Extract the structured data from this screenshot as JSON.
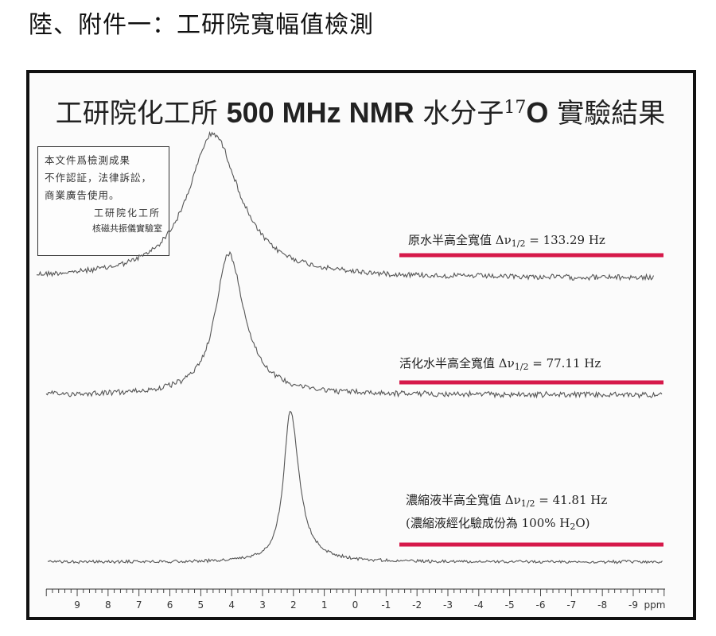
{
  "page": {
    "heading": "陸、附件一：工研院寬幅值檢測"
  },
  "figure": {
    "title_prefix": "工研院化工所",
    "title_bold": "500 MHz NMR",
    "title_mid": "水分子",
    "title_isotope_mass": "17",
    "title_isotope_symbol": "O",
    "title_suffix": "實驗結果"
  },
  "stamp": {
    "lines": [
      "本文件爲檢測成果",
      "不作認証，法律訴訟，",
      "商業廣告使用。"
    ],
    "org": "工研院化工所",
    "lab": "核磁共振儀實驗室"
  },
  "colors": {
    "marker_line": "#d6194a",
    "trace": "#555555",
    "frame": "#111111"
  },
  "chart_data": {
    "type": "line",
    "title": "工研院化工所 500 MHz NMR 水分子17O 實驗結果",
    "xlabel": "ppm",
    "xlim": [
      10,
      -10
    ],
    "x_reversed": true,
    "x_ticks": [
      9,
      8,
      7,
      6,
      5,
      4,
      3,
      2,
      1,
      0,
      -1,
      -2,
      -3,
      -4,
      -5,
      -6,
      -7,
      -8,
      -9
    ],
    "x_unit_label": "ppm",
    "grid": false,
    "series": [
      {
        "id": "raw",
        "label_prefix": "原水半高全寬值",
        "label_delta": "Δν",
        "label_sub": "1/2",
        "label_value": "= 133.29 Hz",
        "fwhm_hz": 133.29,
        "peak_ppm": 4.6,
        "note": ""
      },
      {
        "id": "activated",
        "label_prefix": "活化水半高全寬值",
        "label_delta": "Δν",
        "label_sub": "1/2",
        "label_value": "= 77.11 Hz",
        "fwhm_hz": 77.11,
        "peak_ppm": 4.1,
        "note": ""
      },
      {
        "id": "concentrate",
        "label_prefix": "濃縮液半高全寬值",
        "label_delta": "Δν",
        "label_sub": "1/2",
        "label_value": "= 41.81 Hz",
        "fwhm_hz": 41.81,
        "peak_ppm": 2.1,
        "note_prefix": "(濃縮液經化驗成份為 100% H",
        "note_sub": "2",
        "note_suffix": "O)"
      }
    ]
  }
}
